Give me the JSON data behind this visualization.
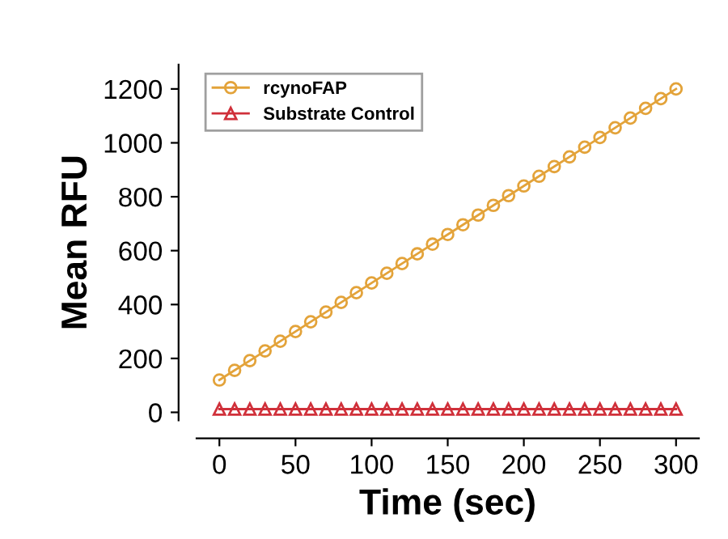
{
  "chart_data": {
    "type": "line",
    "xlabel": "Time (sec)",
    "ylabel": "Mean RFU",
    "x": [
      0,
      10,
      20,
      30,
      40,
      50,
      60,
      70,
      80,
      90,
      100,
      110,
      120,
      130,
      140,
      150,
      160,
      170,
      180,
      190,
      200,
      210,
      220,
      230,
      240,
      250,
      260,
      270,
      280,
      290,
      300
    ],
    "series": [
      {
        "name": "rcynoFAP",
        "color": "#e3a33a",
        "marker": "circle",
        "values": [
          120,
          156,
          192,
          228,
          264,
          300,
          336,
          372,
          408,
          444,
          480,
          516,
          552,
          588,
          624,
          660,
          696,
          732,
          768,
          804,
          840,
          876,
          912,
          948,
          984,
          1020,
          1056,
          1092,
          1128,
          1164,
          1200
        ]
      },
      {
        "name": "Substrate Control",
        "color": "#d0303a",
        "marker": "triangle",
        "values": [
          12,
          12,
          12,
          12,
          12,
          12,
          12,
          12,
          12,
          12,
          12,
          12,
          12,
          12,
          12,
          12,
          12,
          12,
          12,
          12,
          12,
          12,
          12,
          12,
          12,
          12,
          12,
          12,
          12,
          12,
          12
        ]
      }
    ],
    "xlim": [
      -15,
      315
    ],
    "xticks": [
      0,
      50,
      100,
      150,
      200,
      250,
      300
    ],
    "ylim": [
      -30,
      1290
    ],
    "yticks": [
      0,
      200,
      400,
      600,
      800,
      1000,
      1200
    ],
    "legend": "top left",
    "grid": false
  }
}
